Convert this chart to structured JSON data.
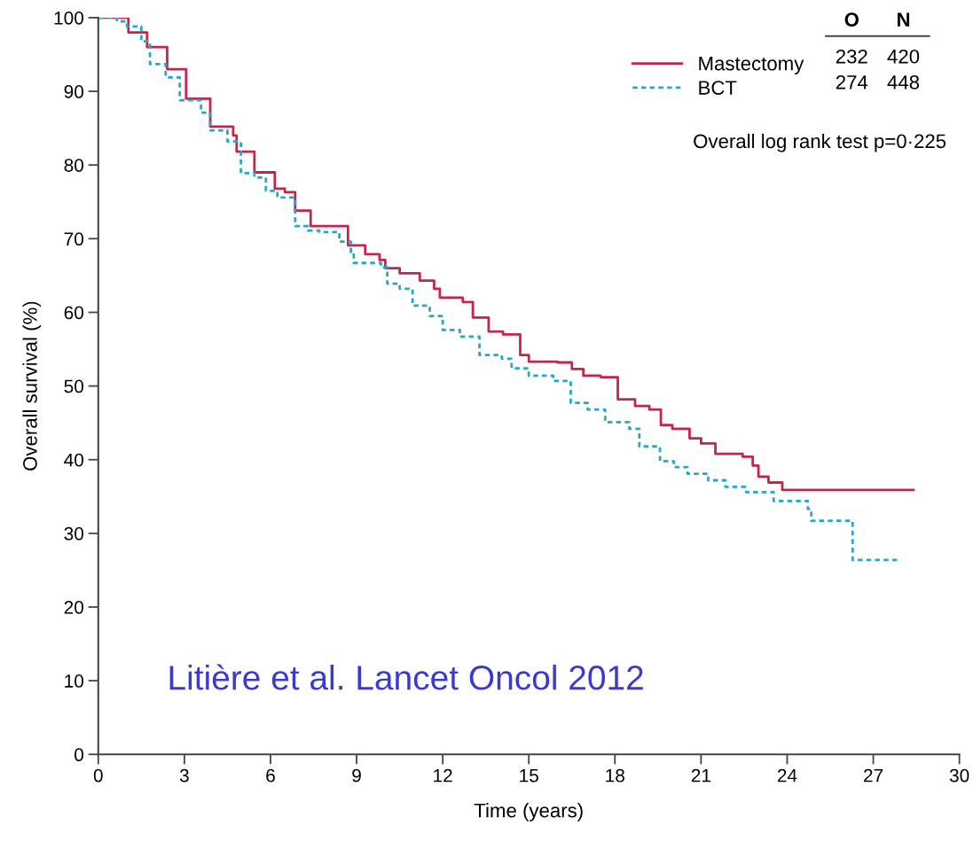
{
  "chart_data": {
    "type": "step",
    "xlabel": "Time (years)",
    "ylabel": "Overall survival (%)",
    "xlim": [
      0,
      30
    ],
    "ylim": [
      0,
      100
    ],
    "xticks": [
      0,
      3,
      6,
      9,
      12,
      15,
      18,
      21,
      24,
      27,
      30
    ],
    "yticks": [
      0,
      10,
      20,
      30,
      40,
      50,
      60,
      70,
      80,
      90,
      100
    ],
    "grid": false,
    "legend": "top right",
    "series": [
      {
        "name": "Mastectomy",
        "color": "#c8234b",
        "line_style": "solid",
        "x": [
          0,
          1.05,
          1.7,
          2.4,
          3.06,
          3.9,
          4.7,
          4.82,
          5.44,
          6.15,
          6.5,
          6.86,
          7.4,
          8.7,
          9.3,
          9.8,
          10.0,
          10.5,
          11.2,
          11.7,
          11.9,
          12.7,
          13.05,
          13.6,
          14.1,
          14.7,
          15.0,
          16.0,
          16.5,
          16.9,
          17.5,
          18.1,
          18.7,
          19.2,
          19.6,
          20.0,
          20.6,
          21.0,
          21.5,
          22.45,
          22.8,
          23.0,
          23.35,
          23.83,
          28.4
        ],
        "values": [
          100,
          98,
          96,
          93,
          89,
          85.2,
          84,
          81.8,
          79,
          76.8,
          76.3,
          73.8,
          71.7,
          69.1,
          67.9,
          67.1,
          66,
          65.3,
          64.3,
          63.2,
          62,
          61.4,
          59.3,
          57.4,
          57,
          54.2,
          53.3,
          53.2,
          52.3,
          51.4,
          51.2,
          48.2,
          47.3,
          46.8,
          44.7,
          44.2,
          42.9,
          42.2,
          40.8,
          40.4,
          39.2,
          37.7,
          36.9,
          35.9,
          35.9
        ]
      },
      {
        "name": "BCT",
        "color": "#2aa6c8",
        "line_style": "dotted",
        "x": [
          0,
          0.65,
          1.0,
          1.5,
          1.8,
          2.35,
          2.84,
          3.58,
          3.9,
          4.5,
          4.97,
          5.44,
          5.84,
          6.24,
          6.86,
          7.3,
          7.7,
          8.4,
          8.8,
          8.9,
          9.85,
          10.07,
          10.5,
          10.95,
          11.55,
          12.0,
          12.6,
          13.28,
          14.06,
          14.4,
          15.0,
          15.85,
          16.46,
          17.05,
          17.66,
          18.5,
          18.85,
          19.57,
          20.05,
          20.53,
          21.25,
          21.85,
          22.57,
          23.53,
          24.72,
          24.84,
          26.28,
          27.96
        ],
        "values": [
          100,
          99.5,
          98.8,
          96.8,
          93.7,
          91.9,
          88.8,
          87.1,
          84.7,
          83.2,
          78.9,
          78.3,
          76.5,
          75.6,
          71.7,
          71.1,
          70.9,
          69.6,
          68.1,
          66.7,
          66.1,
          63.9,
          63.2,
          60.9,
          59.5,
          57.6,
          56.7,
          54.2,
          53.7,
          52.4,
          51.4,
          50.7,
          47.7,
          46.8,
          45.1,
          44.2,
          41.8,
          39.8,
          39.0,
          38.1,
          37.2,
          36.3,
          35.6,
          34.4,
          33.3,
          31.7,
          26.4,
          26.4
        ]
      }
    ],
    "annotations": [
      "O",
      "N",
      "232",
      "420",
      "274",
      "448",
      "Overall log rank test p=0·225",
      "Litière et al. Lancet Oncol 2012"
    ]
  }
}
